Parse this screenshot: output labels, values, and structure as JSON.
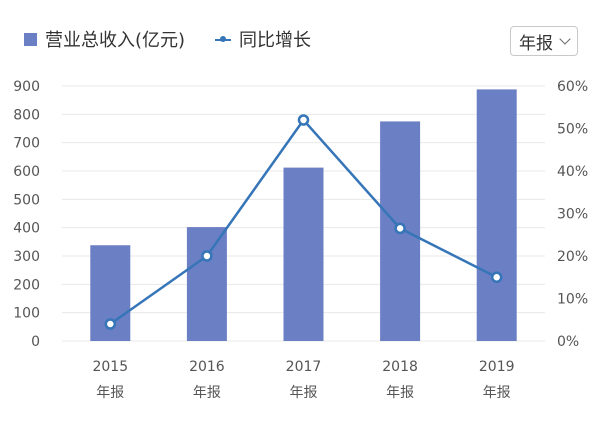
{
  "legend": {
    "bar_label": "营业总收入(亿元)",
    "line_label": "同比增长"
  },
  "period_select": {
    "value": "年报"
  },
  "colors": {
    "bar": "#6b7fc4",
    "line": "#3575b8",
    "grid": "#e8e8e8",
    "tick_text": "#555555"
  },
  "chart_data": {
    "type": "bar",
    "categories": [
      "2015",
      "2016",
      "2017",
      "2018",
      "2019"
    ],
    "category_sublabel": "年报",
    "series": [
      {
        "name": "营业总收入(亿元)",
        "type": "bar",
        "axis": "left",
        "values": [
          338,
          402,
          612,
          775,
          888
        ]
      },
      {
        "name": "同比增长",
        "type": "line",
        "axis": "right",
        "values": [
          4,
          20,
          52,
          26.5,
          15
        ]
      }
    ],
    "y_left": {
      "ticks": [
        "0",
        "100",
        "200",
        "300",
        "400",
        "500",
        "600",
        "700",
        "800",
        "900"
      ],
      "ylim": [
        0,
        900
      ]
    },
    "y_right": {
      "ticks": [
        "0%",
        "10%",
        "20%",
        "30%",
        "40%",
        "50%",
        "60%"
      ],
      "ylim": [
        0,
        60
      ]
    },
    "grid": true,
    "legend_position": "top-left"
  }
}
